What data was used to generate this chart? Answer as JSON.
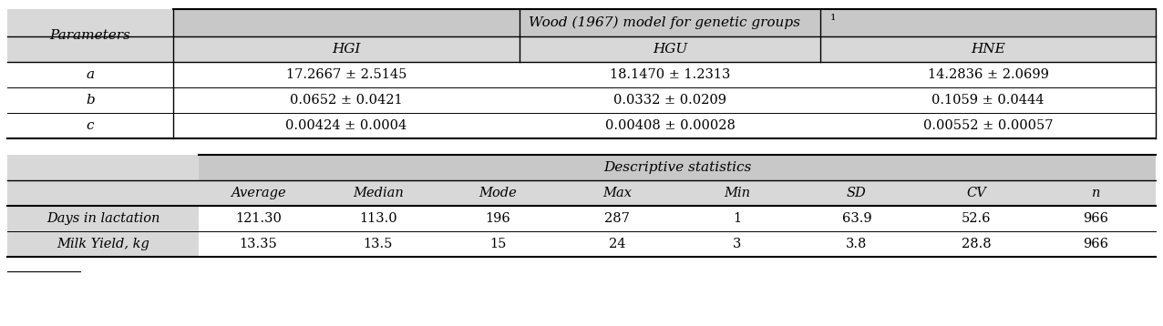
{
  "header_bg": "#c8c8c8",
  "subheader_bg": "#d8d8d8",
  "white_bg": "#ffffff",
  "font_family": "DejaVu Serif",
  "top_table": {
    "col0_header": "Parameters",
    "span_header": "Wood (1967) model for genetic groups",
    "span_superscript": "1",
    "subheaders": [
      "HGI",
      "HGU",
      "HNE"
    ],
    "rows": [
      [
        "a",
        "17.2667 ± 2.5145",
        "18.1470 ± 1.2313",
        "14.2836 ± 2.0699"
      ],
      [
        "b",
        "0.0652 ± 0.0421",
        "0.0332 ± 0.0209",
        "0.1059 ± 0.0444"
      ],
      [
        "c",
        "0.00424 ± 0.0004",
        "0.00408 ± 0.00028",
        "0.00552 ± 0.00057"
      ]
    ]
  },
  "bottom_table": {
    "span_header": "Descriptive statistics",
    "subheaders": [
      "Average",
      "Median",
      "Mode",
      "Max",
      "Min",
      "SD",
      "CV",
      "n"
    ],
    "rows": [
      [
        "Days in lactation",
        "121.30",
        "113.0",
        "196",
        "287",
        "1",
        "63.9",
        "52.6",
        "966"
      ],
      [
        "Milk Yield, kg",
        "13.35",
        "13.5",
        "15",
        "24",
        "3",
        "3.8",
        "28.8",
        "966"
      ]
    ]
  }
}
